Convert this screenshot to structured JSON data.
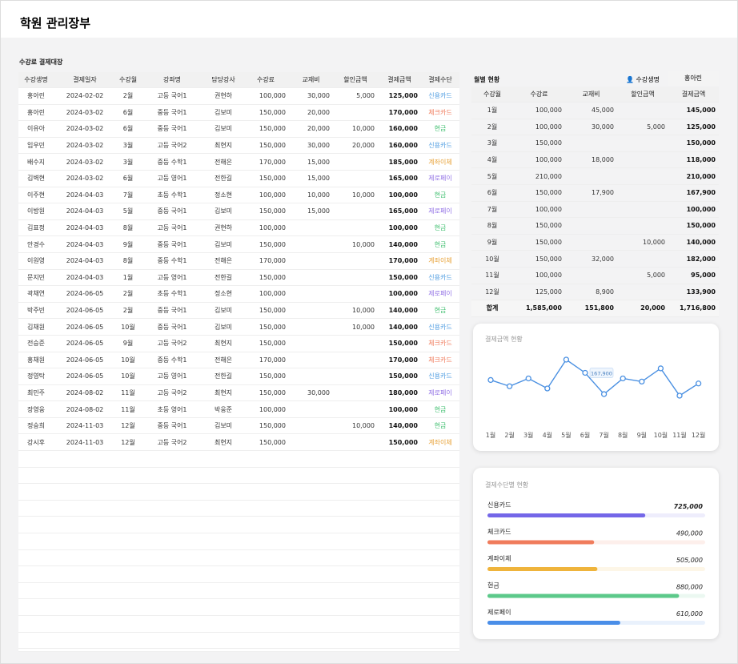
{
  "title": "학원 관리장부",
  "ledger": {
    "title": "수강료 결제대장",
    "headers": [
      "수강생명",
      "결제일자",
      "수강월",
      "강좌명",
      "담당강사",
      "수강료",
      "교재비",
      "할인금액",
      "결제금액",
      "결제수단"
    ],
    "method_colors": {
      "신용카드": "#4a9ae0",
      "체크카드": "#f07a5a",
      "현금": "#3fbf6f",
      "계좌이체": "#e8a33a",
      "제로페이": "#9373e6"
    },
    "rows": [
      [
        "홍아린",
        "2024-02-02",
        "2월",
        "고등 국어1",
        "권현하",
        "100,000",
        "30,000",
        "5,000",
        "125,000",
        "신용카드"
      ],
      [
        "홍아린",
        "2024-03-02",
        "6월",
        "중등 국어1",
        "김보미",
        "150,000",
        "20,000",
        null,
        "170,000",
        "체크카드"
      ],
      [
        "이유아",
        "2024-03-02",
        "6월",
        "중등 국어1",
        "김보미",
        "150,000",
        "20,000",
        "10,000",
        "160,000",
        "현금"
      ],
      [
        "임우민",
        "2024-03-02",
        "3월",
        "고등 국어2",
        "최현지",
        "150,000",
        "30,000",
        "20,000",
        "160,000",
        "신용카드"
      ],
      [
        "배수지",
        "2024-03-02",
        "3월",
        "중등 수학1",
        "전해은",
        "170,000",
        "15,000",
        null,
        "185,000",
        "계좌이체"
      ],
      [
        "김벽현",
        "2024-03-02",
        "6월",
        "고등 영어1",
        "전한길",
        "150,000",
        "15,000",
        null,
        "165,000",
        "제로페이"
      ],
      [
        "이주현",
        "2024-04-03",
        "7월",
        "초등 수학1",
        "정소현",
        "100,000",
        "10,000",
        "10,000",
        "100,000",
        "현금"
      ],
      [
        "이방원",
        "2024-04-03",
        "5월",
        "중등 국어1",
        "김보미",
        "150,000",
        "15,000",
        null,
        "165,000",
        "제로페이"
      ],
      [
        "김표정",
        "2024-04-03",
        "8월",
        "고등 국어1",
        "권현하",
        "100,000",
        null,
        null,
        "100,000",
        "현금"
      ],
      [
        "안경수",
        "2024-04-03",
        "9월",
        "중등 국어1",
        "김보미",
        "150,000",
        null,
        "10,000",
        "140,000",
        "현금"
      ],
      [
        "이원영",
        "2024-04-03",
        "8월",
        "중등 수학1",
        "전해은",
        "170,000",
        null,
        null,
        "170,000",
        "계좌이체"
      ],
      [
        "문지민",
        "2024-04-03",
        "1월",
        "고등 영어1",
        "전한길",
        "150,000",
        null,
        null,
        "150,000",
        "신용카드"
      ],
      [
        "곽채연",
        "2024-06-05",
        "2월",
        "초등 수학1",
        "정소현",
        "100,000",
        null,
        null,
        "100,000",
        "제로페이"
      ],
      [
        "박주빈",
        "2024-06-05",
        "2월",
        "중등 국어1",
        "김보미",
        "150,000",
        null,
        "10,000",
        "140,000",
        "현금"
      ],
      [
        "김채원",
        "2024-06-05",
        "10월",
        "중등 국어1",
        "김보미",
        "150,000",
        null,
        "10,000",
        "140,000",
        "신용카드"
      ],
      [
        "전승준",
        "2024-06-05",
        "9월",
        "고등 국어2",
        "최현지",
        "150,000",
        null,
        null,
        "150,000",
        "체크카드"
      ],
      [
        "홍채원",
        "2024-06-05",
        "10월",
        "중등 수학1",
        "전해은",
        "170,000",
        null,
        null,
        "170,000",
        "체크카드"
      ],
      [
        "정영탁",
        "2024-06-05",
        "10월",
        "고등 영어1",
        "전한길",
        "150,000",
        null,
        null,
        "150,000",
        "신용카드"
      ],
      [
        "최민주",
        "2024-08-02",
        "11월",
        "고등 국어2",
        "최현지",
        "150,000",
        "30,000",
        null,
        "180,000",
        "제로페이"
      ],
      [
        "장영웅",
        "2024-08-02",
        "11월",
        "초등 영어1",
        "박웅준",
        "100,000",
        null,
        null,
        "100,000",
        "현금"
      ],
      [
        "정승희",
        "2024-11-03",
        "12월",
        "중등 국어1",
        "김보미",
        "150,000",
        null,
        "10,000",
        "140,000",
        "현금"
      ],
      [
        "강시후",
        "2024-11-03",
        "12월",
        "고등 국어2",
        "최현지",
        "150,000",
        null,
        null,
        "150,000",
        "계좌이체"
      ]
    ]
  },
  "monthly": {
    "title": "월별 현황",
    "filter_label": "수강생명",
    "filter_value": "홍아린",
    "headers": [
      "수강월",
      "수강료",
      "교재비",
      "할인금액",
      "결제금액"
    ],
    "rows": [
      [
        "1월",
        "100,000",
        "45,000",
        null,
        "145,000"
      ],
      [
        "2월",
        "100,000",
        "30,000",
        "5,000",
        "125,000"
      ],
      [
        "3월",
        "150,000",
        null,
        null,
        "150,000"
      ],
      [
        "4월",
        "100,000",
        "18,000",
        null,
        "118,000"
      ],
      [
        "5월",
        "210,000",
        null,
        null,
        "210,000"
      ],
      [
        "6월",
        "150,000",
        "17,900",
        null,
        "167,900"
      ],
      [
        "7월",
        "100,000",
        null,
        null,
        "100,000"
      ],
      [
        "8월",
        "150,000",
        null,
        null,
        "150,000"
      ],
      [
        "9월",
        "150,000",
        null,
        "10,000",
        "140,000"
      ],
      [
        "10월",
        "150,000",
        "32,000",
        null,
        "182,000"
      ],
      [
        "11월",
        "100,000",
        null,
        "5,000",
        "95,000"
      ],
      [
        "12월",
        "125,000",
        "8,900",
        null,
        "133,900"
      ]
    ],
    "total": [
      "합계",
      "1,585,000",
      "151,800",
      "20,000",
      "1,716,800"
    ]
  },
  "payment_chart": {
    "type": "line",
    "title": "결제금액 현황",
    "color": "#4a90e2",
    "categories": [
      "1월",
      "2월",
      "3월",
      "4월",
      "5월",
      "6월",
      "7월",
      "8월",
      "9월",
      "10월",
      "11월",
      "12월"
    ],
    "values": [
      145000,
      125000,
      150000,
      118000,
      210000,
      167900,
      100000,
      150000,
      140000,
      182000,
      95000,
      133900
    ],
    "value_labels": [
      null,
      null,
      null,
      null,
      null,
      "167,900",
      null,
      null,
      null,
      null,
      null,
      null
    ]
  },
  "method_chart": {
    "type": "bar",
    "title": "결제수단별 현황",
    "xlim": [
      0,
      1000000
    ],
    "categories": [
      "신용카드",
      "체크카드",
      "계좌이체",
      "현금",
      "제로페이"
    ],
    "values": [
      725000,
      490000,
      505000,
      880000,
      610000
    ],
    "value_labels": [
      "725,000",
      "490,000",
      "505,000",
      "880,000",
      "610,000"
    ],
    "colors": [
      "#7467e8",
      "#f07c5c",
      "#efb43c",
      "#5cc98a",
      "#4a8ee8"
    ]
  }
}
